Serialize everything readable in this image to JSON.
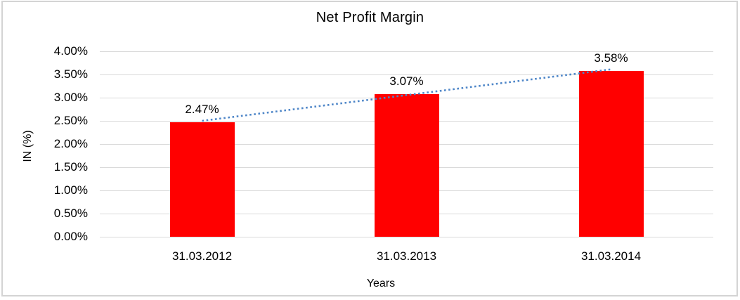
{
  "chart_data": {
    "type": "bar",
    "title": "Net Profit Margin",
    "xlabel": "Years",
    "ylabel": "IN (%)",
    "categories": [
      "31.03.2012",
      "31.03.2013",
      "31.03.2014"
    ],
    "series": [
      {
        "name": "Net Profit Margin",
        "values": [
          2.47,
          3.07,
          3.58
        ]
      }
    ],
    "data_labels": [
      "2.47%",
      "3.07%",
      "3.58%"
    ],
    "ylim": [
      0,
      4
    ],
    "ytick_step": 0.5,
    "ytick_labels": [
      "0.00%",
      "0.50%",
      "1.00%",
      "1.50%",
      "2.00%",
      "2.50%",
      "3.00%",
      "3.50%",
      "4.00%"
    ],
    "grid": "horizontal",
    "legend": "none",
    "colors": {
      "bar": "#ff0000",
      "trendline": "#4e86c8",
      "gridline": "#d9d9d9",
      "text": "#000000",
      "frame_border": "#d4d4d4"
    },
    "trendline": {
      "type": "linear",
      "style": "dotted"
    }
  }
}
